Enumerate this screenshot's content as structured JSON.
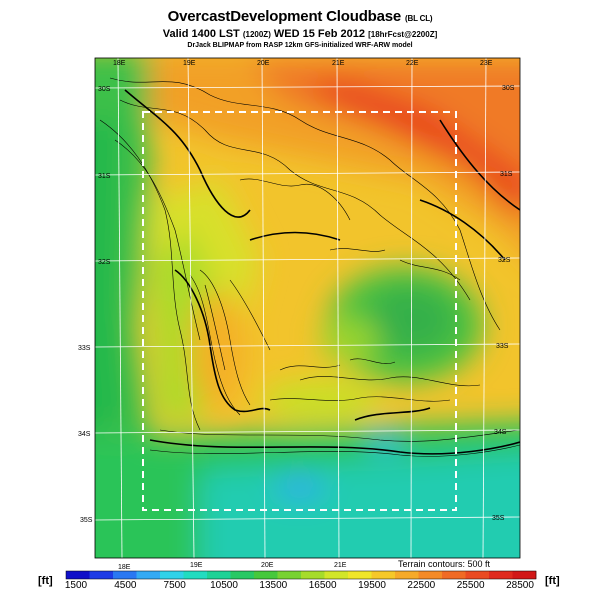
{
  "header": {
    "title": "OvercastDevelopment Cloudbase",
    "title_tag": "(BL CL)",
    "valid_line": "Valid 1400 LST",
    "valid_code": "(1200Z)",
    "valid_date": "WED 15 Feb 2012",
    "forecast_tag": "[18hrFcst@2200Z]",
    "credit": "DrJack BLIPMAP from RASP 12km GFS-initialized WRF-ARW model"
  },
  "map": {
    "lon_labels_top": [
      "18E",
      "19E",
      "20E",
      "21E",
      "22E",
      "23E"
    ],
    "lon_labels_bottom": [
      "18E",
      "19E",
      "20E",
      "21E"
    ],
    "lat_labels_left": [
      "30S",
      "31S",
      "32S",
      "33S",
      "34S",
      "35S"
    ],
    "lat_labels_right": [
      "30S",
      "31S",
      "32S",
      "33S",
      "34S",
      "35S"
    ],
    "terrain_note": "Terrain contours: 500 ft"
  },
  "colorbar": {
    "unit_left": "[ft]",
    "unit_right": "[ft]",
    "ticks": [
      "1500",
      "4500",
      "7500",
      "10500",
      "13500",
      "16500",
      "19500",
      "22500",
      "25500",
      "28500"
    ],
    "colors": [
      "#1010c8",
      "#1e3ce6",
      "#2a78f2",
      "#34aaf4",
      "#30d2e8",
      "#22dcc0",
      "#1ed296",
      "#28c864",
      "#46c83c",
      "#78d232",
      "#a6dc2a",
      "#d2e628",
      "#f0e628",
      "#f6c828",
      "#f6aa28",
      "#f48a26",
      "#f06a24",
      "#ea4a22",
      "#e02a1e",
      "#d21818"
    ]
  }
}
